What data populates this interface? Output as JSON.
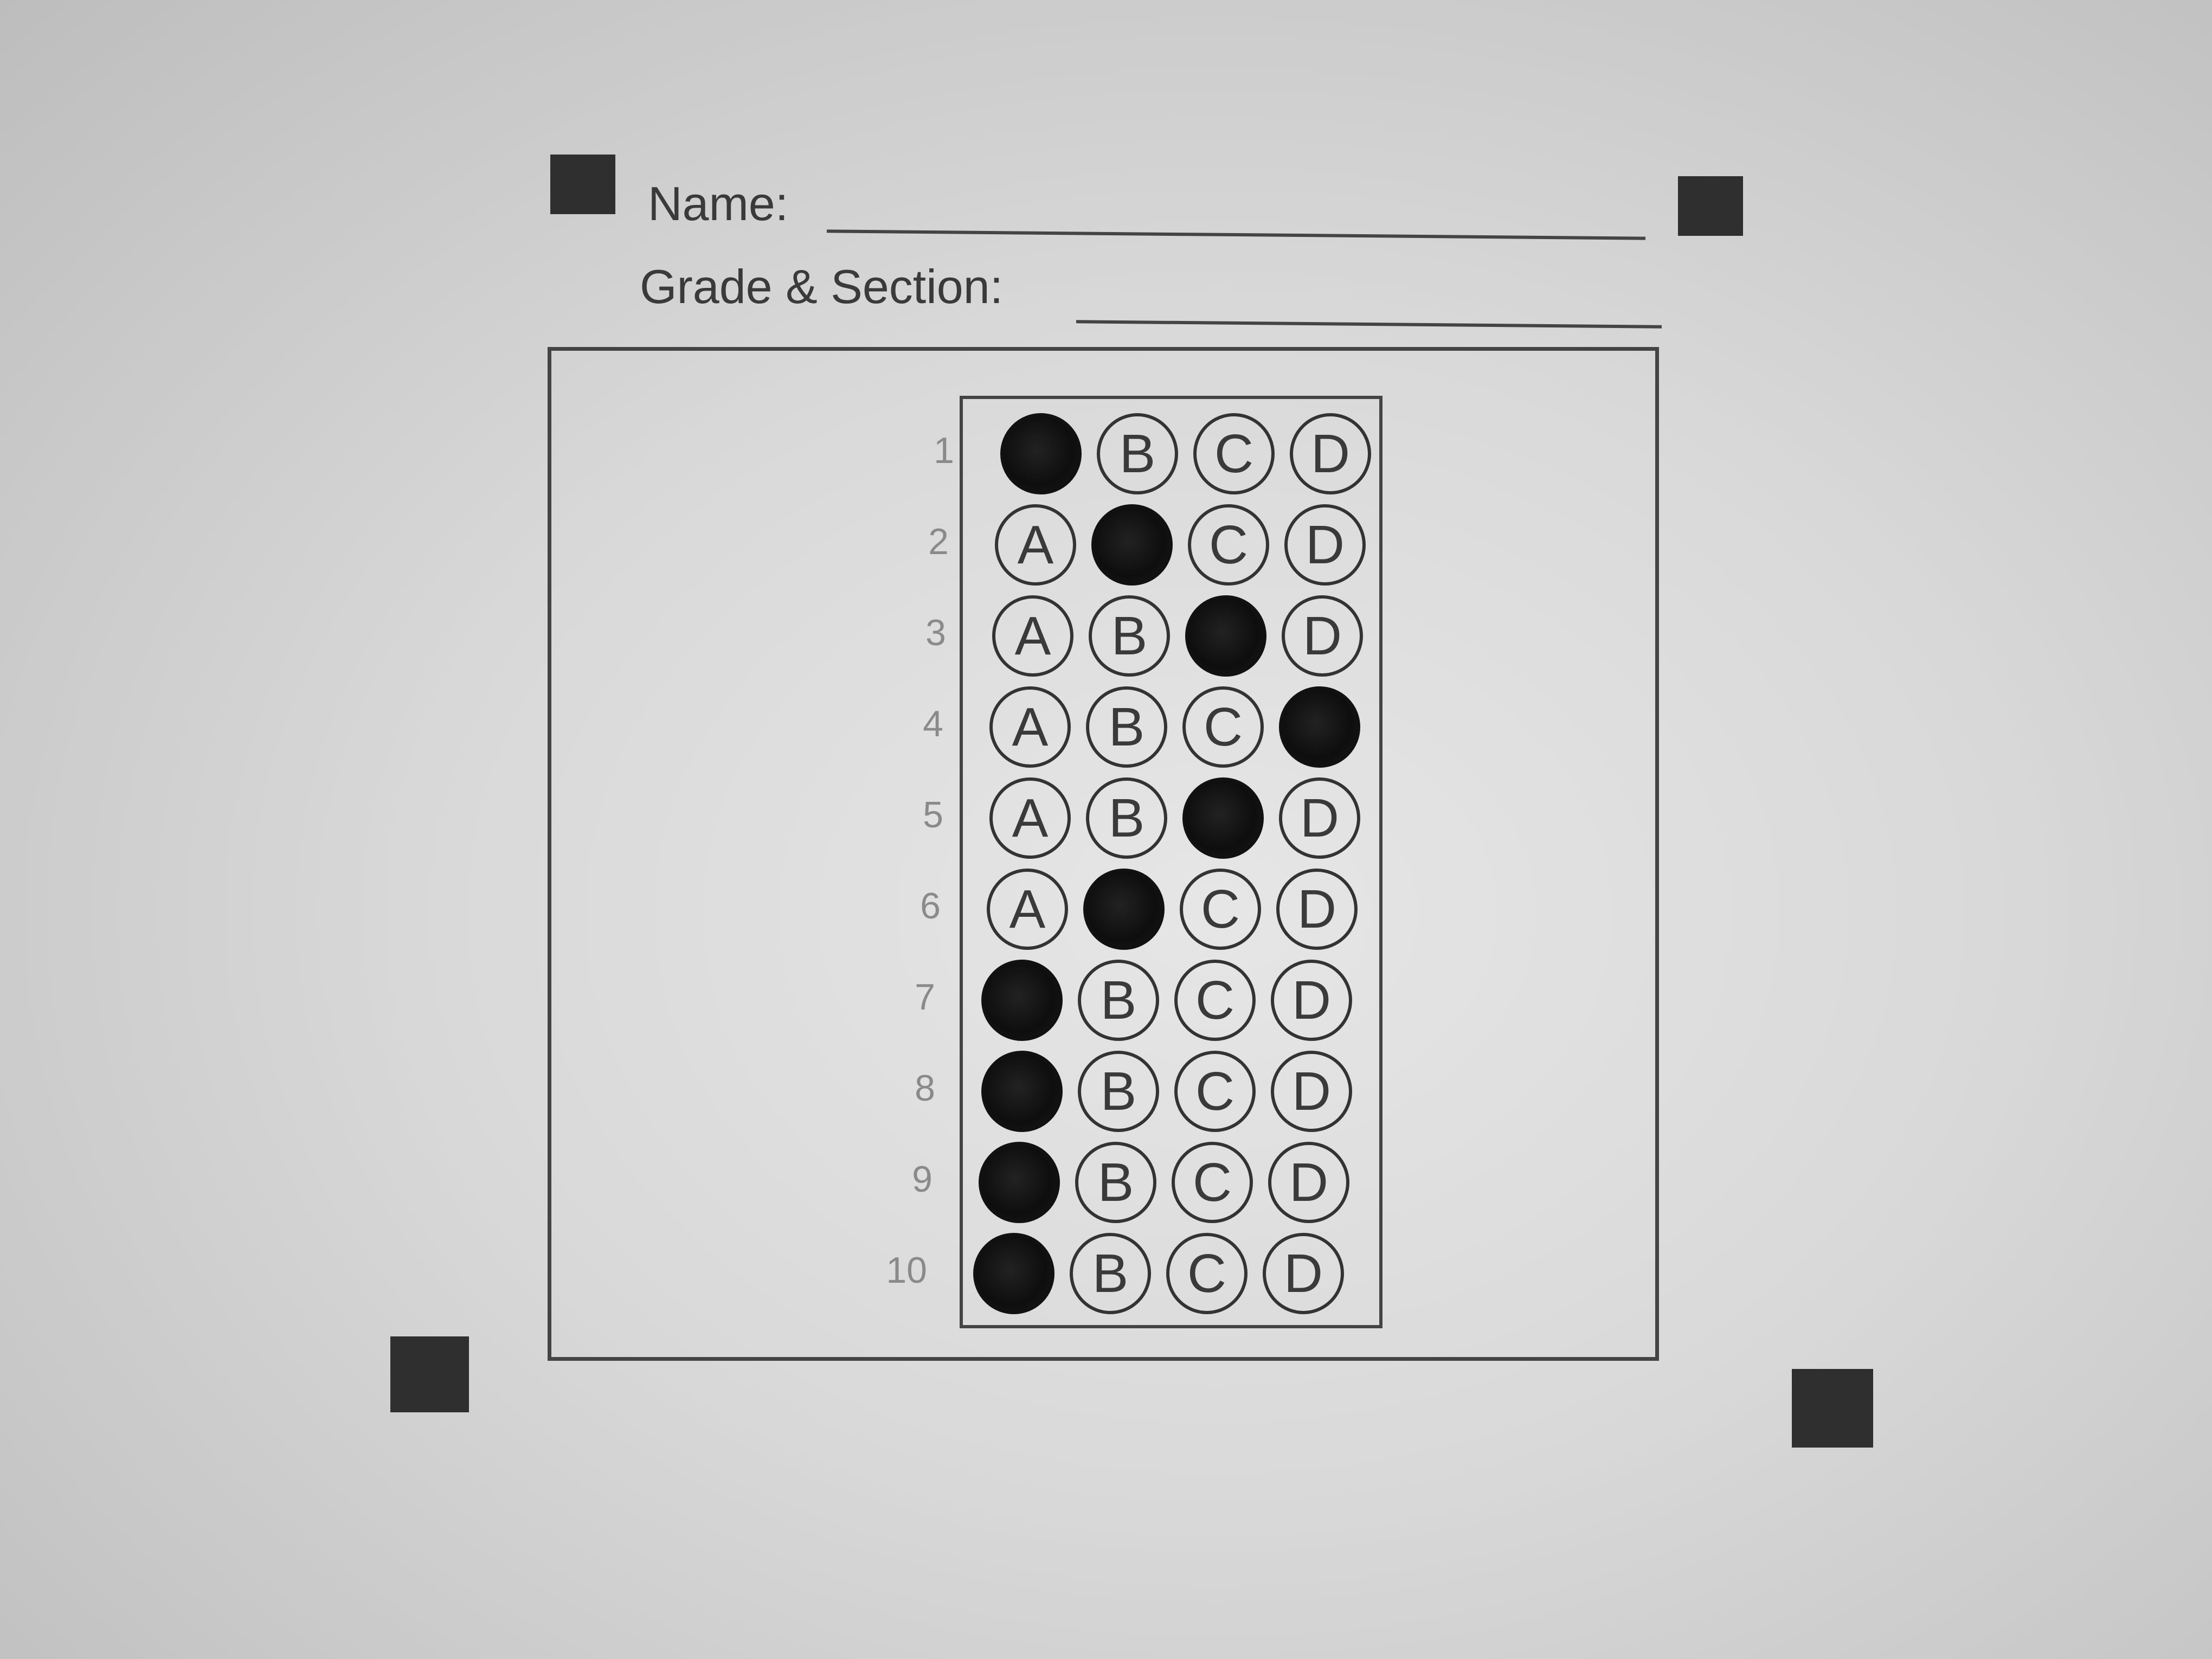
{
  "header": {
    "name_label": "Name:",
    "grade_section_label": "Grade & Section:"
  },
  "options": [
    "A",
    "B",
    "C",
    "D"
  ],
  "questions": [
    {
      "number": "1",
      "selected": "A"
    },
    {
      "number": "2",
      "selected": "B"
    },
    {
      "number": "3",
      "selected": "C"
    },
    {
      "number": "4",
      "selected": "D"
    },
    {
      "number": "5",
      "selected": "C"
    },
    {
      "number": "6",
      "selected": "B"
    },
    {
      "number": "7",
      "selected": "A"
    },
    {
      "number": "8",
      "selected": "A"
    },
    {
      "number": "9",
      "selected": "A"
    },
    {
      "number": "10",
      "selected": "A"
    }
  ]
}
